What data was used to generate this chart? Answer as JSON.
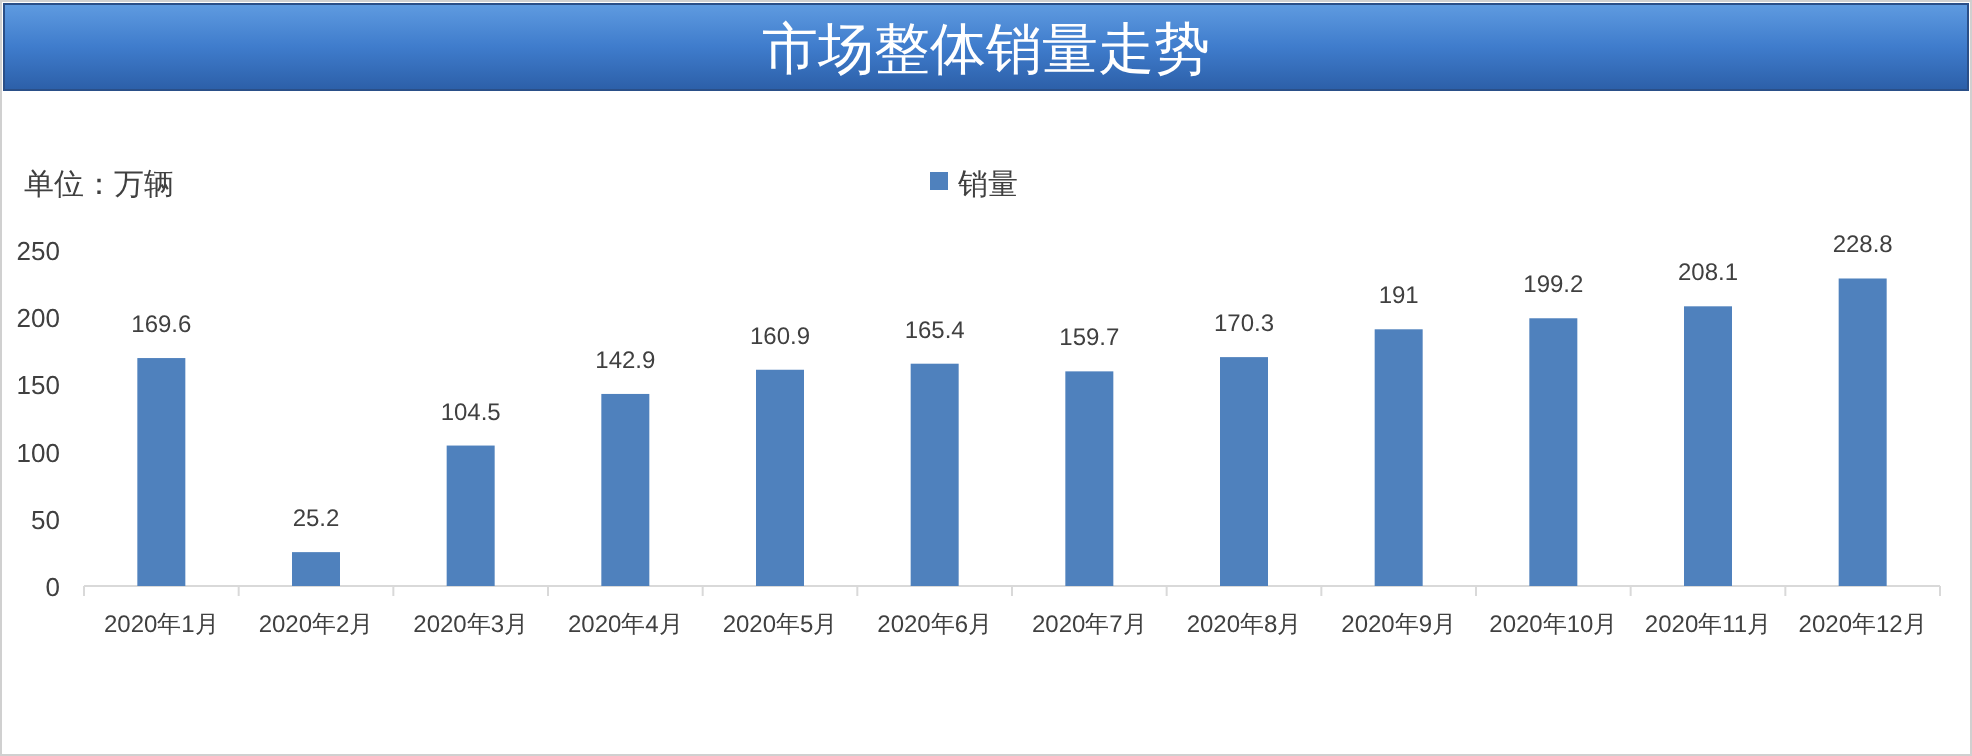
{
  "chart_data": {
    "type": "bar",
    "title": "市场整体销量走势",
    "ylabel": "单位：万辆",
    "categories": [
      "2020年1月",
      "2020年2月",
      "2020年3月",
      "2020年4月",
      "2020年5月",
      "2020年6月",
      "2020年7月",
      "2020年8月",
      "2020年9月",
      "2020年10月",
      "2020年11月",
      "2020年12月"
    ],
    "series": [
      {
        "name": "销量",
        "color": "#4f81bd",
        "values": [
          169.6,
          25.2,
          104.5,
          142.9,
          160.9,
          165.4,
          159.7,
          170.3,
          191,
          199.2,
          208.1,
          228.8
        ]
      }
    ],
    "ylim": [
      0,
      250
    ],
    "yticks": [
      0,
      50,
      100,
      150,
      200,
      250
    ],
    "data_labels": true,
    "legend": "top",
    "grid": false
  }
}
